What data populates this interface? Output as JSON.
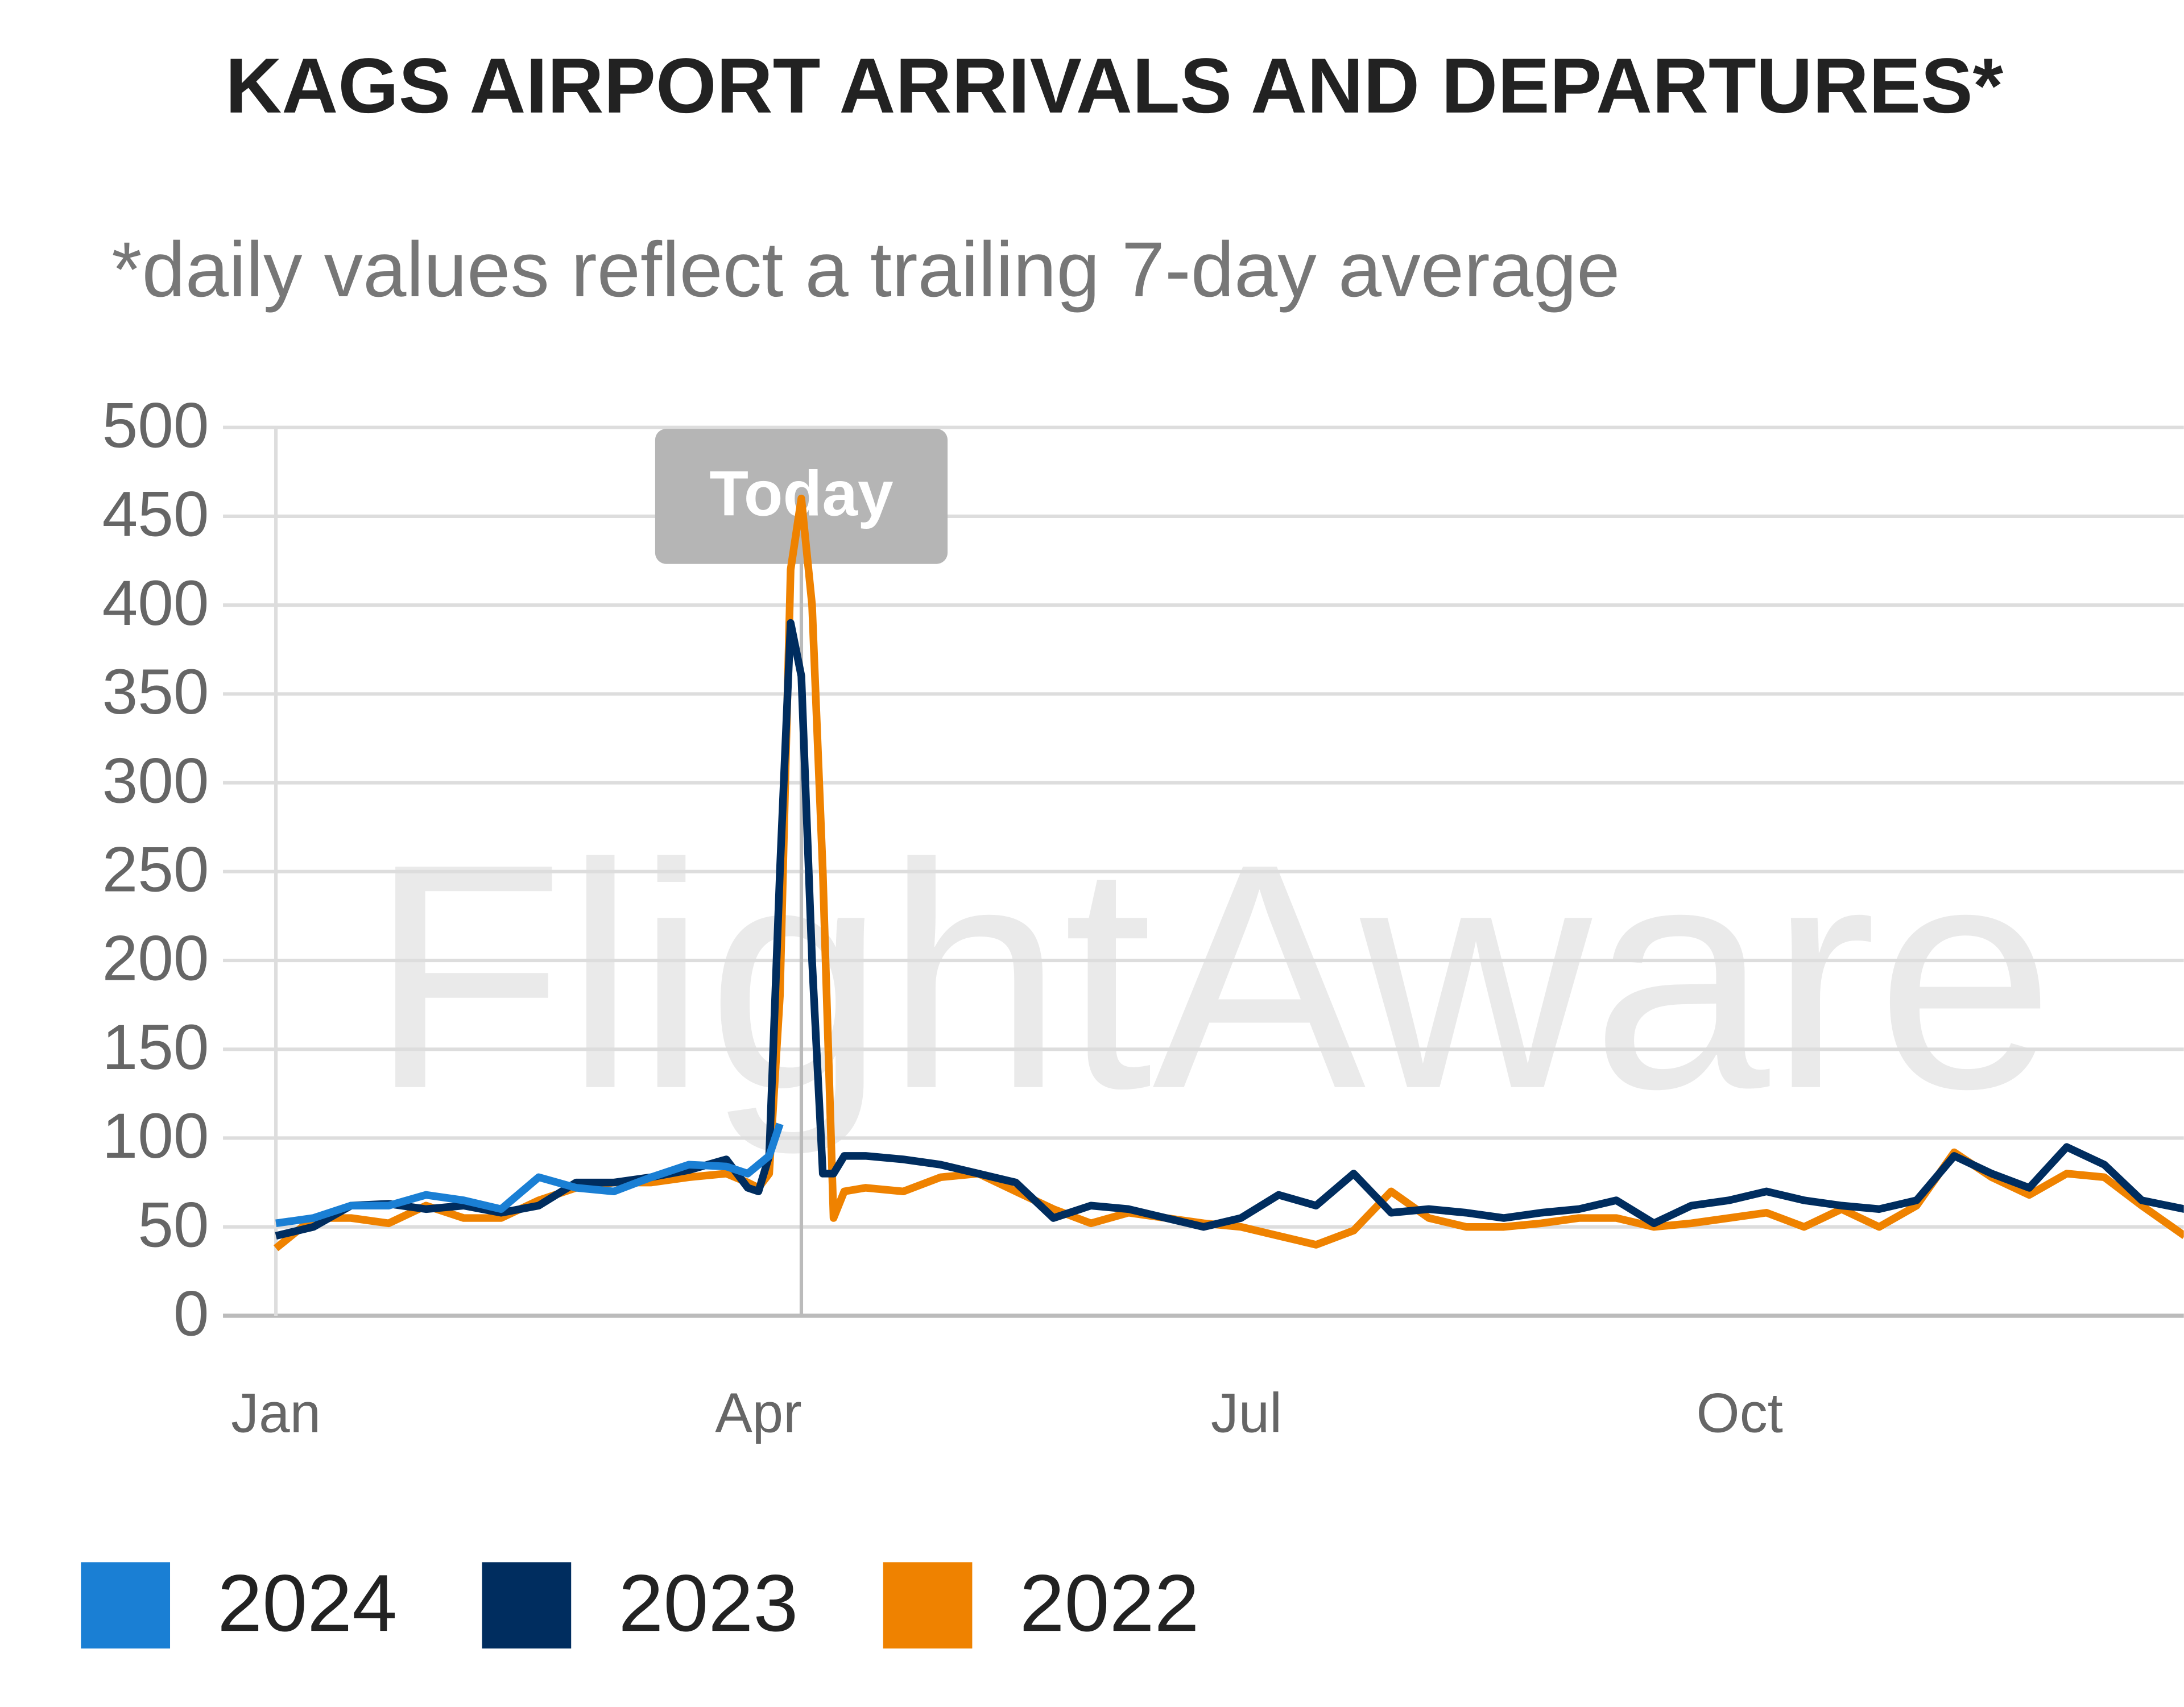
{
  "chart_data": {
    "type": "line",
    "title": "KAGS AIRPORT ARRIVALS AND DEPARTURES*",
    "subtitle": "*daily values reflect a trailing 7-day average",
    "watermark": "FlightAware",
    "annotations": [
      {
        "text": "Today",
        "x": 98
      }
    ],
    "x": [
      0,
      7,
      14,
      21,
      28,
      35,
      42,
      49,
      56,
      63,
      70,
      77,
      84,
      88,
      90,
      92,
      94,
      96,
      98,
      100,
      102,
      104,
      106,
      110,
      117,
      124,
      131,
      138,
      145,
      152,
      159,
      166,
      173,
      180,
      187,
      194,
      201,
      208,
      215,
      222,
      229,
      236,
      243,
      250,
      257,
      264,
      271,
      278,
      285,
      292,
      299,
      306,
      313,
      320,
      327,
      334,
      341,
      348,
      356
    ],
    "xlim": [
      0,
      356
    ],
    "xticks": [
      {
        "value": 0,
        "label": "Jan"
      },
      {
        "value": 90,
        "label": "Apr"
      },
      {
        "value": 181,
        "label": "Jul"
      },
      {
        "value": 273,
        "label": "Oct"
      }
    ],
    "ylim": [
      0,
      500
    ],
    "yticks": [
      0,
      50,
      100,
      150,
      200,
      250,
      300,
      350,
      400,
      450,
      500
    ],
    "grid": true,
    "legend": "bottom",
    "series": [
      {
        "name": "2024",
        "color": "#1a7fd4",
        "values": [
          52,
          55,
          62,
          62,
          68,
          65,
          60,
          78,
          72,
          70,
          78,
          85,
          84,
          80,
          85,
          90,
          108,
          null,
          null,
          null,
          null,
          null,
          null,
          null,
          null,
          null,
          null,
          null,
          null,
          null,
          null,
          null,
          null,
          null,
          null,
          null,
          null,
          null,
          null,
          null,
          null,
          null,
          null,
          null,
          null,
          null,
          null,
          null,
          null,
          null,
          null,
          null,
          null,
          null,
          null,
          null,
          null,
          null,
          null
        ]
      },
      {
        "name": "2023",
        "color": "#002d5f",
        "values": [
          45,
          50,
          62,
          63,
          60,
          62,
          58,
          62,
          75,
          75,
          78,
          82,
          88,
          72,
          70,
          90,
          250,
          390,
          360,
          200,
          80,
          80,
          90,
          90,
          88,
          85,
          80,
          75,
          55,
          62,
          60,
          55,
          50,
          55,
          68,
          62,
          80,
          58,
          60,
          58,
          55,
          58,
          60,
          65,
          52,
          62,
          65,
          70,
          65,
          62,
          60,
          65,
          90,
          80,
          72,
          95,
          85,
          65,
          60
        ]
      },
      {
        "name": "2022",
        "color": "#ef8200",
        "values": [
          38,
          55,
          55,
          52,
          62,
          55,
          55,
          65,
          72,
          75,
          75,
          78,
          80,
          75,
          72,
          80,
          180,
          420,
          460,
          400,
          250,
          55,
          70,
          72,
          70,
          78,
          80,
          70,
          60,
          52,
          58,
          55,
          52,
          50,
          45,
          40,
          48,
          70,
          55,
          50,
          50,
          52,
          55,
          55,
          50,
          52,
          55,
          58,
          50,
          60,
          50,
          62,
          92,
          78,
          68,
          80,
          78,
          62,
          45
        ]
      }
    ]
  }
}
